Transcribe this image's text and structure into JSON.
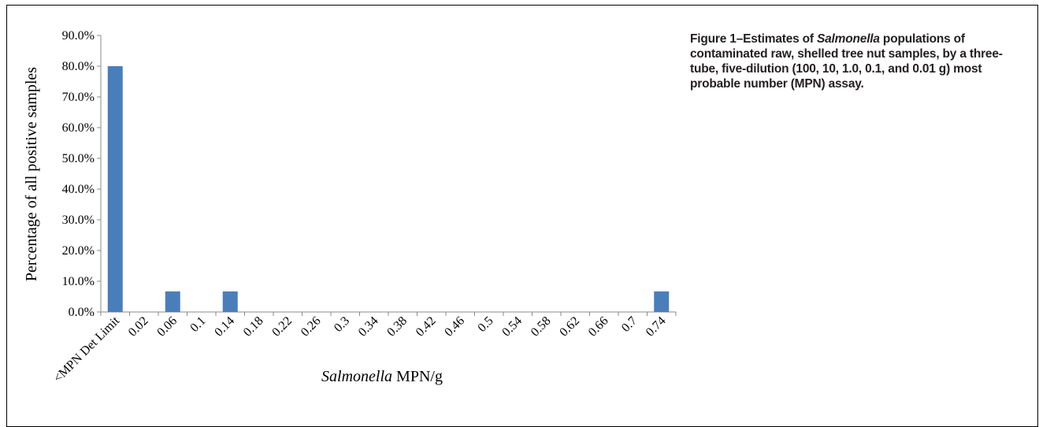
{
  "caption": {
    "prefix": "Figure 1–Estimates of ",
    "italic": "Salmonella",
    "suffix": " populations of contaminated raw, shelled tree nut samples, by a three-tube, five-dilution (100, 10, 1.0, 0.1, and 0.01 g) most probable number (MPN) assay."
  },
  "chart_data": {
    "type": "bar",
    "ylabel": "Percentage of all positive samples",
    "xlabel_italic": "Salmonella",
    "xlabel_rest": " MPN/g",
    "ylim": [
      0,
      90
    ],
    "yticks": [
      "0.0%",
      "10.0%",
      "20.0%",
      "30.0%",
      "40.0%",
      "50.0%",
      "60.0%",
      "70.0%",
      "80.0%",
      "90.0%"
    ],
    "categories": [
      "<MPN Det Limit",
      "0.02",
      "0.06",
      "0.1",
      "0.14",
      "0.18",
      "0.22",
      "0.26",
      "0.3",
      "0.34",
      "0.38",
      "0.42",
      "0.46",
      "0.5",
      "0.54",
      "0.58",
      "0.62",
      "0.66",
      "0.7",
      "0.74"
    ],
    "values": [
      80.0,
      0,
      6.7,
      0,
      6.7,
      0,
      0,
      0,
      0,
      0,
      0,
      0,
      0,
      0,
      0,
      0,
      0,
      0,
      0,
      6.7
    ],
    "bar_color": "#4a7ebb",
    "grid": false,
    "legend": "none"
  }
}
